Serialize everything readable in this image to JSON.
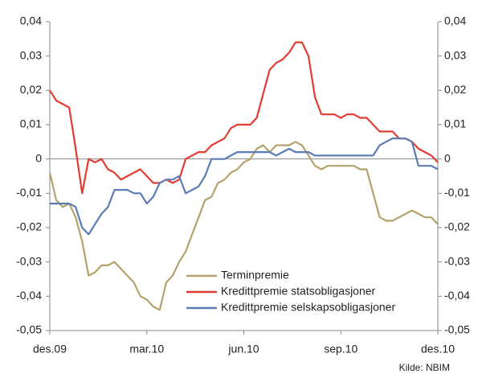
{
  "chart_data": {
    "type": "line",
    "source": "Kilde: NBIM",
    "categories": [
      "des.09",
      null,
      null,
      null,
      null,
      null,
      null,
      null,
      null,
      null,
      null,
      null,
      null,
      null,
      null,
      "mar.10",
      null,
      null,
      null,
      null,
      null,
      null,
      null,
      null,
      null,
      null,
      null,
      null,
      null,
      null,
      "jun.10",
      null,
      null,
      null,
      null,
      null,
      null,
      null,
      null,
      null,
      null,
      null,
      null,
      null,
      null,
      "sep.10",
      null,
      null,
      null,
      null,
      null,
      null,
      null,
      null,
      null,
      null,
      null,
      null,
      null,
      null,
      "des.10"
    ],
    "series": [
      {
        "name": "Terminpremie",
        "color": "#b3a26b",
        "values": [
          -0.004,
          -0.012,
          -0.014,
          -0.013,
          -0.017,
          -0.024,
          -0.034,
          -0.033,
          -0.031,
          -0.031,
          -0.03,
          -0.032,
          -0.034,
          -0.036,
          -0.04,
          -0.041,
          -0.043,
          -0.044,
          -0.036,
          -0.034,
          -0.03,
          -0.027,
          -0.022,
          -0.017,
          -0.012,
          -0.011,
          -0.007,
          -0.006,
          -0.004,
          -0.003,
          -0.001,
          0.0,
          0.003,
          0.004,
          0.002,
          0.004,
          0.004,
          0.004,
          0.005,
          0.004,
          0.001,
          -0.002,
          -0.003,
          -0.002,
          -0.002,
          -0.002,
          -0.002,
          -0.002,
          -0.003,
          -0.003,
          -0.01,
          -0.017,
          -0.018,
          -0.018,
          -0.017,
          -0.016,
          -0.015,
          -0.016,
          -0.017,
          -0.017,
          -0.019
        ]
      },
      {
        "name": "Kredittpremie statsobligasjoner",
        "color": "#e03c31",
        "values": [
          0.02,
          0.017,
          0.016,
          0.015,
          0.003,
          -0.01,
          0.0,
          -0.001,
          0.0,
          -0.003,
          -0.004,
          -0.006,
          -0.005,
          -0.004,
          -0.003,
          -0.005,
          -0.007,
          -0.007,
          -0.006,
          -0.007,
          -0.006,
          0.0,
          0.001,
          0.002,
          0.002,
          0.004,
          0.005,
          0.006,
          0.009,
          0.01,
          0.01,
          0.01,
          0.012,
          0.019,
          0.026,
          0.028,
          0.029,
          0.031,
          0.034,
          0.034,
          0.03,
          0.018,
          0.013,
          0.013,
          0.013,
          0.012,
          0.013,
          0.013,
          0.012,
          0.012,
          0.01,
          0.008,
          0.008,
          0.008,
          0.006,
          0.006,
          0.005,
          0.003,
          0.002,
          0.001,
          -0.001
        ]
      },
      {
        "name": "Kredittpremie selskapsobligasjoner",
        "color": "#5b7db5",
        "values": [
          -0.013,
          -0.013,
          -0.013,
          -0.013,
          -0.014,
          -0.02,
          -0.022,
          -0.019,
          -0.016,
          -0.014,
          -0.009,
          -0.009,
          -0.009,
          -0.01,
          -0.01,
          -0.013,
          -0.011,
          -0.007,
          -0.006,
          -0.006,
          -0.005,
          -0.01,
          -0.009,
          -0.008,
          -0.005,
          0.0,
          0.0,
          0.0,
          0.001,
          0.002,
          0.002,
          0.002,
          0.002,
          0.002,
          0.002,
          0.001,
          0.002,
          0.003,
          0.002,
          0.002,
          0.002,
          0.001,
          0.001,
          0.001,
          0.001,
          0.001,
          0.001,
          0.001,
          0.001,
          0.001,
          0.001,
          0.004,
          0.005,
          0.006,
          0.006,
          0.006,
          0.005,
          -0.002,
          -0.002,
          -0.002,
          -0.003
        ]
      }
    ],
    "ylim": [
      -0.05,
      0.04
    ],
    "yticks": [
      {
        "value": -0.05,
        "label": "-0,05"
      },
      {
        "value": -0.04,
        "label": "-0,04"
      },
      {
        "value": -0.03,
        "label": "-0,03"
      },
      {
        "value": -0.02,
        "label": "-0,02"
      },
      {
        "value": -0.01,
        "label": "-0,01"
      },
      0,
      {
        "value": 0.01,
        "label": "0,01"
      },
      {
        "value": 0.02,
        "label": "0,02"
      },
      {
        "value": 0.03,
        "label": "0,03"
      },
      {
        "value": 0.04,
        "label": "0,04"
      }
    ],
    "y2lim": [
      -0.05,
      0.04
    ],
    "y2ticks": [
      {
        "value": -0.05,
        "label": "-0,05"
      },
      {
        "value": -0.04,
        "label": "-0,04"
      },
      {
        "value": -0.03,
        "label": "-0,03"
      },
      {
        "value": -0.02,
        "label": "-0,02"
      },
      {
        "value": -0.01,
        "label": "-0,01"
      },
      0,
      {
        "value": 0.01,
        "label": "0,01"
      },
      {
        "value": 0.02,
        "label": "0,02"
      },
      {
        "value": 0.03,
        "label": "0,03"
      },
      {
        "value": 0.04,
        "label": "0,04"
      }
    ],
    "grid": false
  }
}
